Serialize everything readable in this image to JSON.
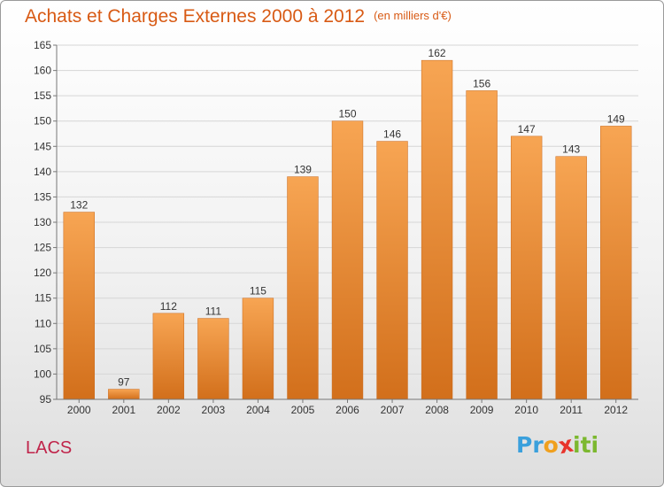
{
  "chart_data": {
    "type": "bar",
    "title": "Achats et Charges Externes 2000 à 2012",
    "subtitle": "(en milliers d'€)",
    "xlabel": "",
    "ylabel": "",
    "categories": [
      "2000",
      "2001",
      "2002",
      "2003",
      "2004",
      "2005",
      "2006",
      "2007",
      "2008",
      "2009",
      "2010",
      "2011",
      "2012"
    ],
    "values": [
      132,
      97,
      112,
      111,
      115,
      139,
      150,
      146,
      162,
      156,
      147,
      143,
      149
    ],
    "ylim": [
      95,
      165
    ],
    "yticks": [
      95,
      100,
      105,
      110,
      115,
      120,
      125,
      130,
      135,
      140,
      145,
      150,
      155,
      160,
      165
    ],
    "grid": true,
    "bar_color": "#f0963c"
  },
  "place_label": "LACS",
  "logo": {
    "letters": [
      "P",
      "r",
      "o",
      "x",
      "i",
      "t",
      "i"
    ],
    "colors": [
      "#3aa0dc",
      "#3aa0dc",
      "#f0a01e",
      "#e8342c",
      "#7cb82f",
      "#7cb82f",
      "#7cb82f"
    ]
  }
}
